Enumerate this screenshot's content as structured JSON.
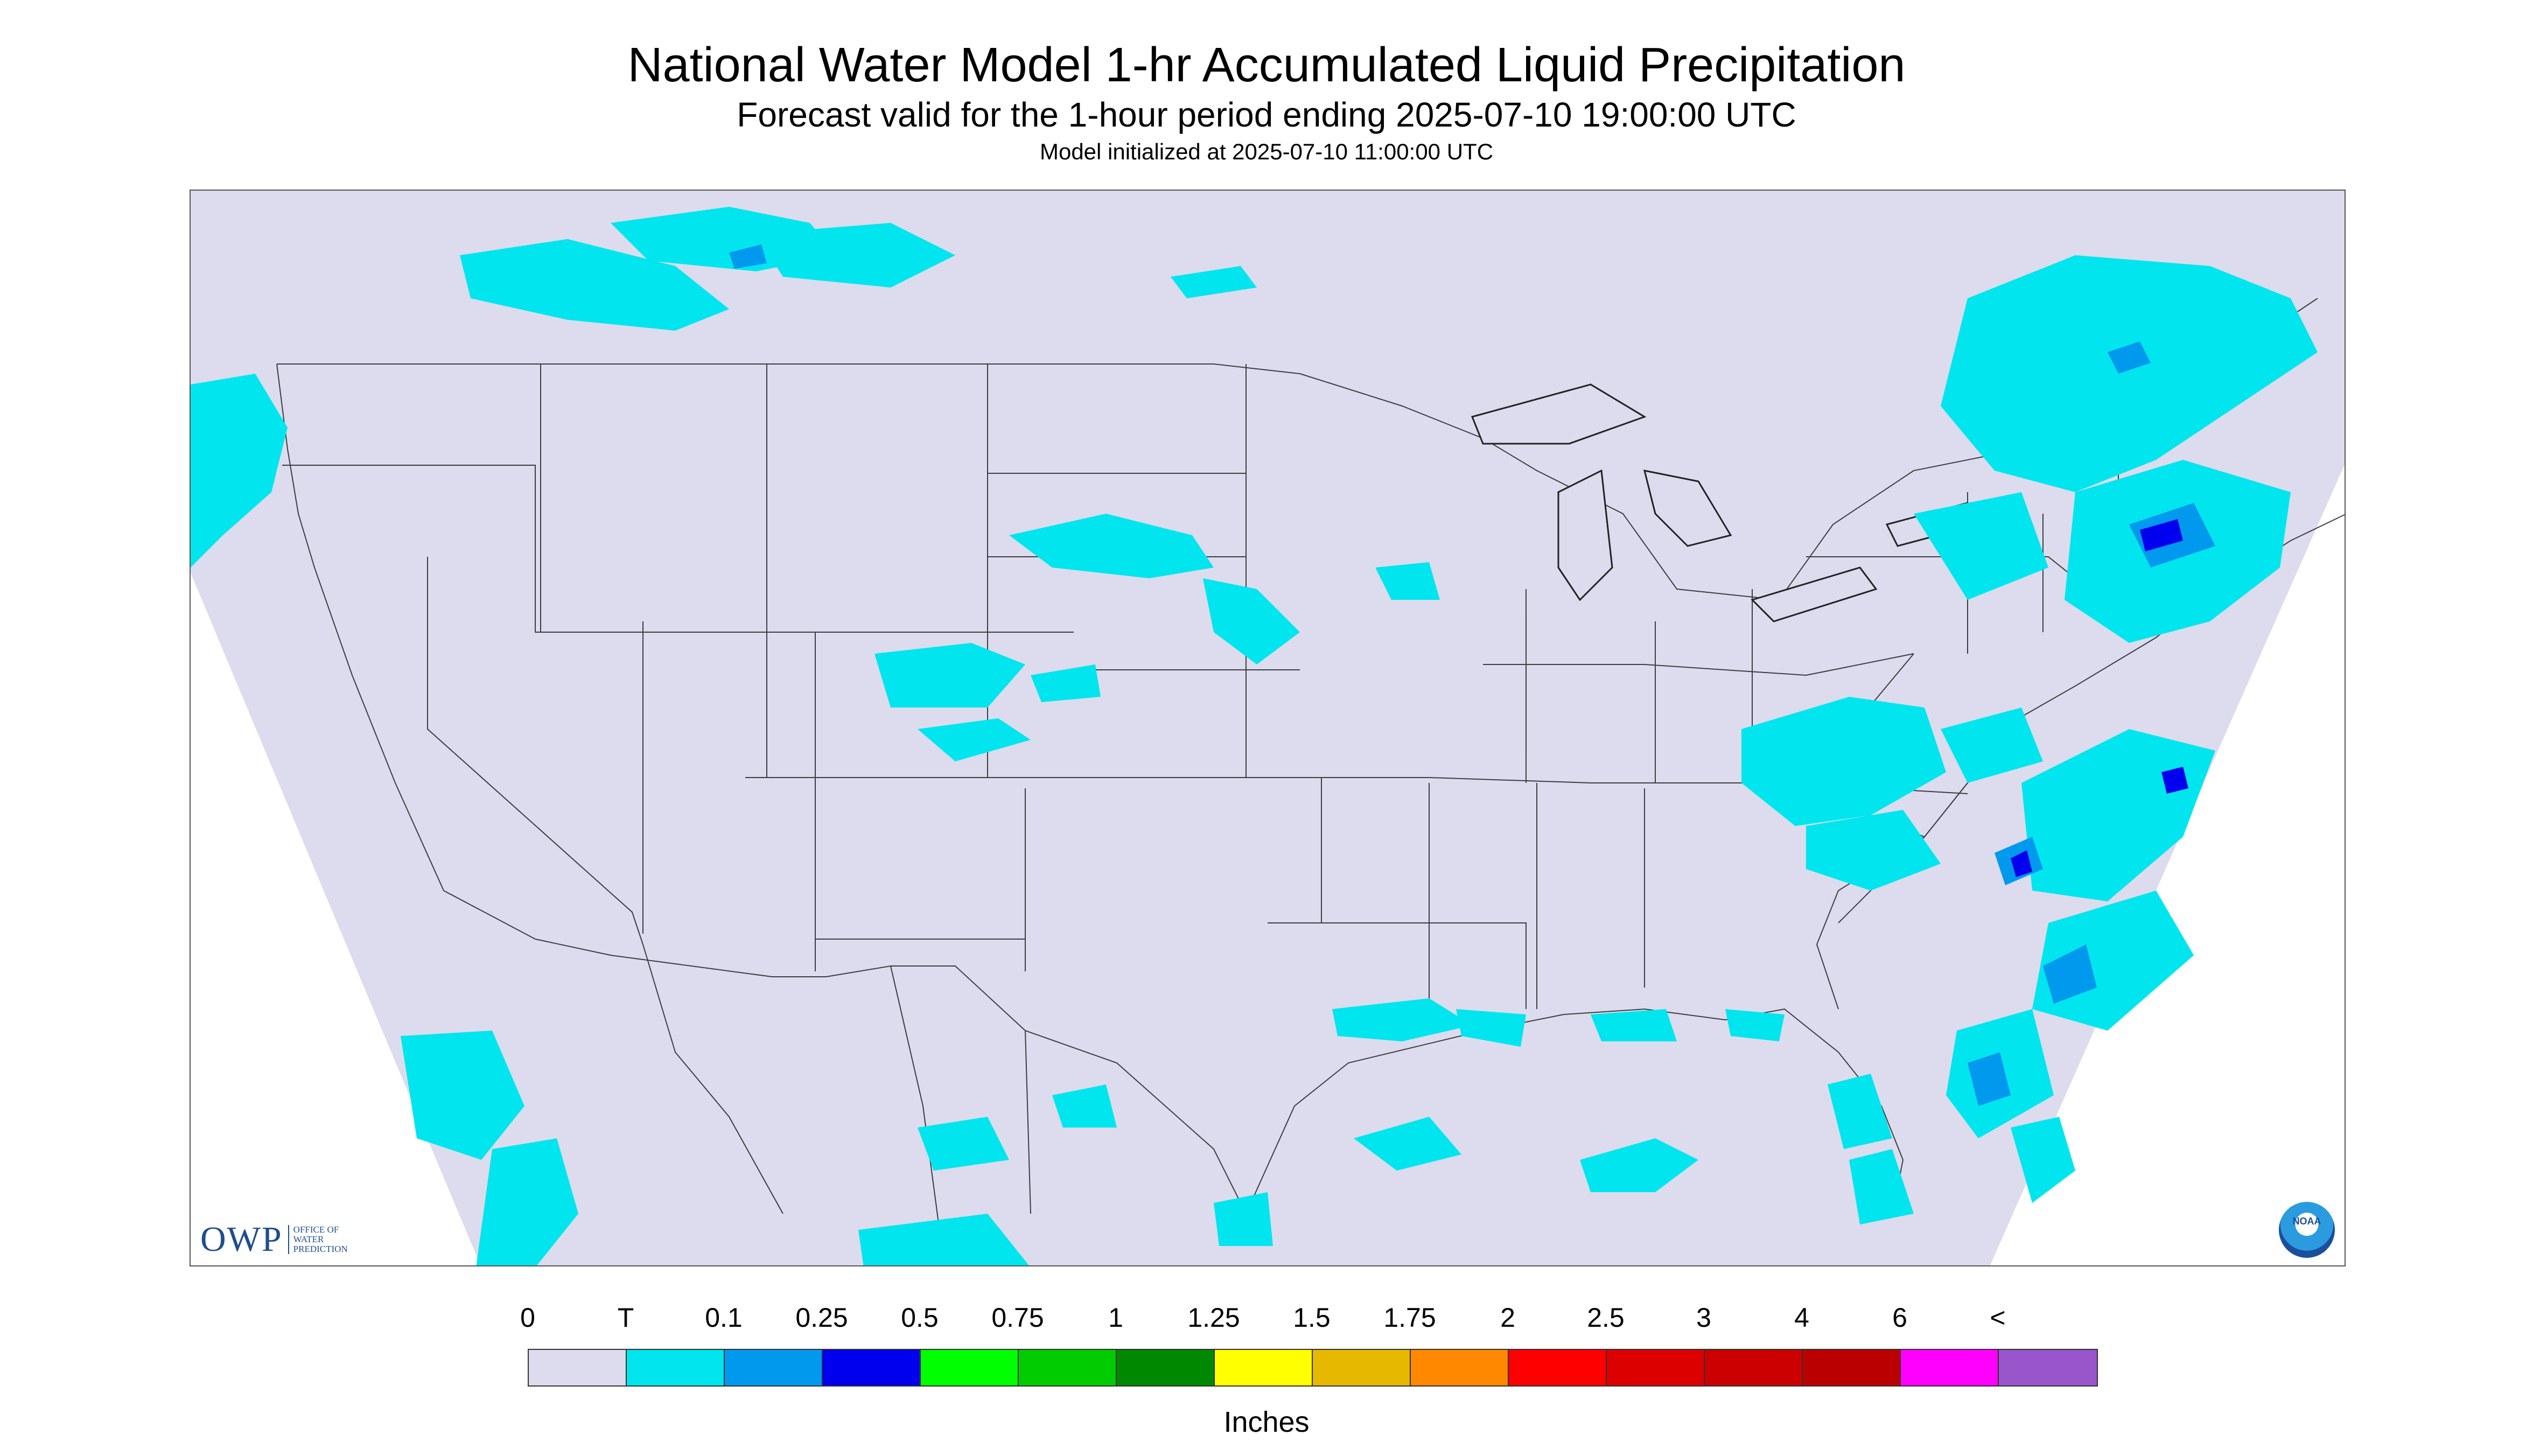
{
  "header": {
    "title": "National Water Model 1-hr Accumulated Liquid Precipitation",
    "subtitle": "Forecast valid for the 1-hour period ending 2025-07-10 19:00:00 UTC",
    "init": "Model initialized at 2025-07-10 11:00:00 UTC"
  },
  "colors": {
    "background_domain": "#dcdcee",
    "trace": "#00e5ee",
    "light": "#0099ee",
    "heavy": "#0000ee",
    "border_line": "#222222"
  },
  "logos": {
    "owp_text": "OWP",
    "owp_sub": [
      "OFFICE OF",
      "WATER",
      "PREDICTION"
    ],
    "noaa_text": "NOAA"
  },
  "legend": {
    "labels": [
      "0",
      "T",
      "0.1",
      "0.25",
      "0.5",
      "0.75",
      "1",
      "1.25",
      "1.5",
      "1.75",
      "2",
      "2.5",
      "3",
      "4",
      "6",
      "<"
    ],
    "colors": [
      "#dcdcee",
      "#00e5ee",
      "#0099ee",
      "#0000ee",
      "#00ff00",
      "#00cc00",
      "#008800",
      "#ffff00",
      "#e6b800",
      "#ff8800",
      "#ff0000",
      "#dd0000",
      "#cc0000",
      "#bb0000",
      "#ff00ff",
      "#9955cc"
    ],
    "units": "Inches"
  }
}
